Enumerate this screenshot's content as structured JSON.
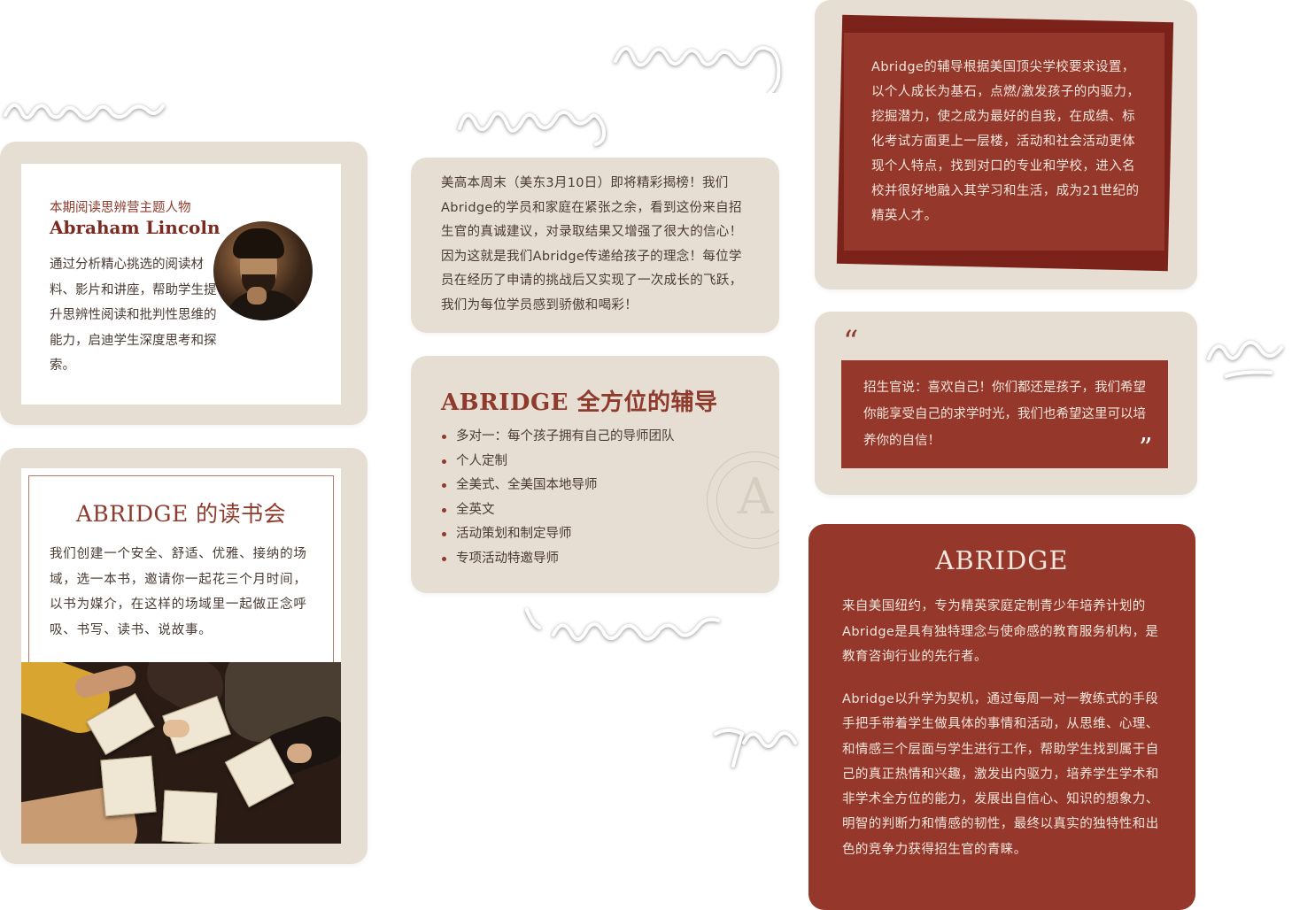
{
  "colors": {
    "card_bg": "#e6ddd3",
    "accent": "#95372a",
    "dark_accent": "#7b231b",
    "text": "#4a3b33"
  },
  "lincoln": {
    "kicker": "本期阅读思辨营主题人物",
    "name": "Abraham Lincoln",
    "description": "通过分析精心挑选的阅读材料、影片和讲座，帮助学生提升思辨性阅读和批判性思维的能力，启迪学生深度思考和探索。"
  },
  "reading_club": {
    "title": "ABRIDGE 的读书会",
    "description": "我们创建一个安全、舒适、优雅、接纳的场域，选一本书，邀请你一起花三个月时间，以书为媒介，在这样的场域里一起做正念呼吸、书写、读书、说故事。"
  },
  "announcement": {
    "text": "美高本周末（美东3月10日）即将精彩揭榜！我们Abridge的学员和家庭在紧张之余，看到这份来自招生官的真诚建议，对录取结果又增强了很大的信心！因为这就是我们Abridge传递给孩子的理念！每位学员在经历了申请的挑战后又实现了一次成长的飞跃，我们为每位学员感到骄傲和喝彩！"
  },
  "tutoring": {
    "title": "ABRIDGE 全方位的辅导",
    "items": [
      "多对一：每个孩子拥有自己的导师团队",
      "个人定制",
      "全美式、全美国本地导师",
      "全英文",
      "活动策划和制定导师",
      "专项活动特邀导师"
    ],
    "seal_letter": "A"
  },
  "philosophy": {
    "text": "Abridge的辅导根据美国顶尖学校要求设置，以个人成长为基石，点燃/激发孩子的内驱力，挖掘潜力，使之成为最好的自我，在成绩、标化考试方面更上一层楼，活动和社会活动更体现个人特点，找到对口的专业和学校，进入名校并很好地融入其学习和生活，成为21世纪的精英人才。"
  },
  "quote": {
    "open_mark": "“",
    "close_mark": "”",
    "text": "招生官说：喜欢自己！你们都还是孩子，我们希望你能享受自己的求学时光，我们也希望这里可以培养你的自信！"
  },
  "about": {
    "logo": "ABRIDGE",
    "p1": "来自美国纽约，专为精英家庭定制青少年培养计划的Abridge是具有独特理念与使命感的教育服务机构，是教育咨询行业的先行者。",
    "p2": "Abridge以升学为契机，通过每周一对一教练式的手段手把手带着学生做具体的事情和活动，从思维、心理、和情感三个层面与学生进行工作，帮助学生找到属于自己的真正热情和兴趣，激发出内驱力，培养学生学术和非学术全方位的能力，发展出自信心、知识的想象力、明智的判断力和情感的韧性，最终以真实的独特性和出色的竞争力获得招生官的青睐。"
  }
}
